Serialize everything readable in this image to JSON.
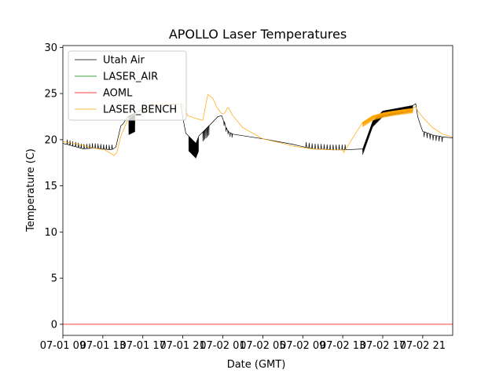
{
  "chart_data": {
    "type": "line",
    "title": "APOLLO Laser Temperatures",
    "xlabel": "Date (GMT)",
    "ylabel": "Temperature (C)",
    "x_units": "hours since 07-01 08:00 (GMT)",
    "xlim": [
      0,
      39
    ],
    "ylim": [
      -1.2,
      30.2
    ],
    "x_ticks": [
      {
        "x": 0,
        "label": "07-01 09"
      },
      {
        "x": 4,
        "label": "07-01 13"
      },
      {
        "x": 8,
        "label": "07-01 17"
      },
      {
        "x": 12,
        "label": "07-01 21"
      },
      {
        "x": 16,
        "label": "07-02 01"
      },
      {
        "x": 20,
        "label": "07-02 05"
      },
      {
        "x": 24,
        "label": "07-02 09"
      },
      {
        "x": 28,
        "label": "07-02 13"
      },
      {
        "x": 32,
        "label": "07-02 17"
      },
      {
        "x": 36,
        "label": "07-02 21"
      }
    ],
    "y_ticks": [
      0,
      5,
      10,
      15,
      20,
      25,
      30
    ],
    "grid": false,
    "legend_position": "top-left",
    "series": [
      {
        "name": "Utah Air",
        "color": "#000000",
        "line_width": 0.7,
        "x": [
          0,
          1,
          2,
          3,
          4.8,
          5.3,
          5.8,
          6,
          6.5,
          8,
          9,
          11.8,
          12,
          12.3,
          13.3,
          13.6,
          14.5,
          15.5,
          15.9,
          16.3,
          16.6,
          17,
          20,
          23,
          25,
          27,
          28,
          30,
          31,
          32,
          33,
          35,
          35.3,
          35.5,
          35.8,
          36,
          37,
          38,
          39
        ],
        "y": [
          19.6,
          19.3,
          19,
          19.1,
          18.9,
          19.2,
          21.5,
          21.7,
          22.5,
          23.3,
          23.6,
          23.9,
          22.4,
          20.7,
          19.6,
          20.4,
          21.4,
          22.5,
          22.6,
          21.3,
          20.8,
          20.6,
          20.1,
          19.5,
          19,
          18.9,
          18.9,
          19,
          22,
          23.1,
          23.3,
          23.7,
          23.9,
          22.5,
          21.5,
          20.9,
          20.5,
          20.3,
          20.2
        ],
        "oscillations": [
          {
            "x_start": 0.4,
            "x_end": 5.0,
            "spacing": 0.28,
            "amplitude": 0.5,
            "direction": "up"
          },
          {
            "x_start": 6.6,
            "x_end": 7.2,
            "spacing": 0.045,
            "amplitude": 2.0,
            "direction": "down"
          },
          {
            "x_start": 12.6,
            "x_end": 13.6,
            "spacing": 0.05,
            "amplitude": 1.6,
            "direction": "down"
          },
          {
            "x_start": 14.0,
            "x_end": 14.6,
            "spacing": 0.1,
            "amplitude": 1.0,
            "direction": "down"
          },
          {
            "x_start": 16.1,
            "x_end": 17.0,
            "spacing": 0.2,
            "amplitude": 0.4,
            "direction": "down"
          },
          {
            "x_start": 24.3,
            "x_end": 28.5,
            "spacing": 0.3,
            "amplitude": 0.55,
            "direction": "up"
          },
          {
            "x_start": 30.0,
            "x_end": 35.0,
            "spacing": 0.06,
            "amplitude": 0.6,
            "direction": "down"
          },
          {
            "x_start": 36.1,
            "x_end": 38.0,
            "spacing": 0.3,
            "amplitude": 0.55,
            "direction": "down"
          }
        ]
      },
      {
        "name": "LASER_AIR",
        "color": "#008000",
        "line_width": 0.7,
        "x": [],
        "y": []
      },
      {
        "name": "AOML",
        "color": "#ff0000",
        "line_width": 0.7,
        "x": [
          0,
          39
        ],
        "y": [
          0,
          0
        ]
      },
      {
        "name": "LASER_BENCH",
        "color": "#ffa500",
        "line_width": 0.7,
        "x": [
          0,
          1,
          2,
          3,
          4.2,
          5.1,
          5.4,
          5.8,
          6.5,
          8,
          9,
          11.9,
          12.5,
          13.3,
          14,
          14.5,
          15,
          15.4,
          15.9,
          16.2,
          16.5,
          16.6,
          17,
          18,
          20,
          22,
          23,
          25,
          27,
          28,
          28.1,
          29,
          30,
          31,
          32,
          33,
          35,
          35.3,
          35.5,
          36.2,
          37,
          38,
          39
        ],
        "y": [
          19.8,
          19.6,
          19.4,
          19.1,
          18.9,
          18.3,
          18.6,
          20.4,
          22.2,
          23.5,
          23.8,
          23.9,
          22.6,
          22.3,
          22.1,
          24.9,
          24.5,
          23.5,
          22.8,
          22.9,
          23.5,
          23.4,
          22.6,
          21.3,
          20.1,
          19.6,
          19.3,
          19,
          18.9,
          18.9,
          18.6,
          20.2,
          21.9,
          22.6,
          22.9,
          23.1,
          23.4,
          23.6,
          23.1,
          22.2,
          21.3,
          20.6,
          20.3
        ],
        "oscillations": [
          {
            "x_start": 30.0,
            "x_end": 35.0,
            "spacing": 0.07,
            "amplitude": 0.5,
            "direction": "down"
          }
        ]
      }
    ]
  }
}
